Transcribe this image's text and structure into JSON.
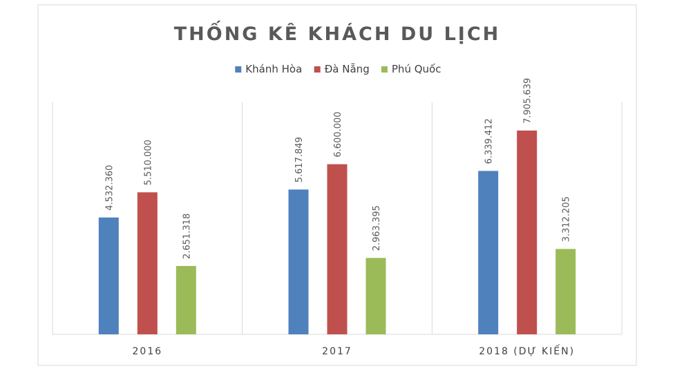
{
  "chart_data": {
    "type": "bar",
    "title": "THỐNG KÊ KHÁCH DU LỊCH",
    "categories": [
      "2016",
      "2017",
      "2018 (DỰ KIẾN)"
    ],
    "series": [
      {
        "name": "Khánh Hòa",
        "color": "#4f81bd",
        "values": [
          4532360,
          5617849,
          6339412
        ],
        "labels": [
          "4.532.360",
          "5.617.849",
          "6.339.412"
        ]
      },
      {
        "name": "Đà Nẵng",
        "color": "#c0504d",
        "values": [
          5510000,
          6600000,
          7905639
        ],
        "labels": [
          "5.510.000",
          "6.600.000",
          "7.905.639"
        ]
      },
      {
        "name": "Phú Quốc",
        "color": "#9bbb59",
        "values": [
          2651318,
          2963395,
          3312205
        ],
        "labels": [
          "2.651.318",
          "2.963.395",
          "3.312.205"
        ]
      }
    ],
    "ylim": [
      0,
      10000000
    ],
    "legend_position": "top",
    "grid": false,
    "category_separators": true
  }
}
